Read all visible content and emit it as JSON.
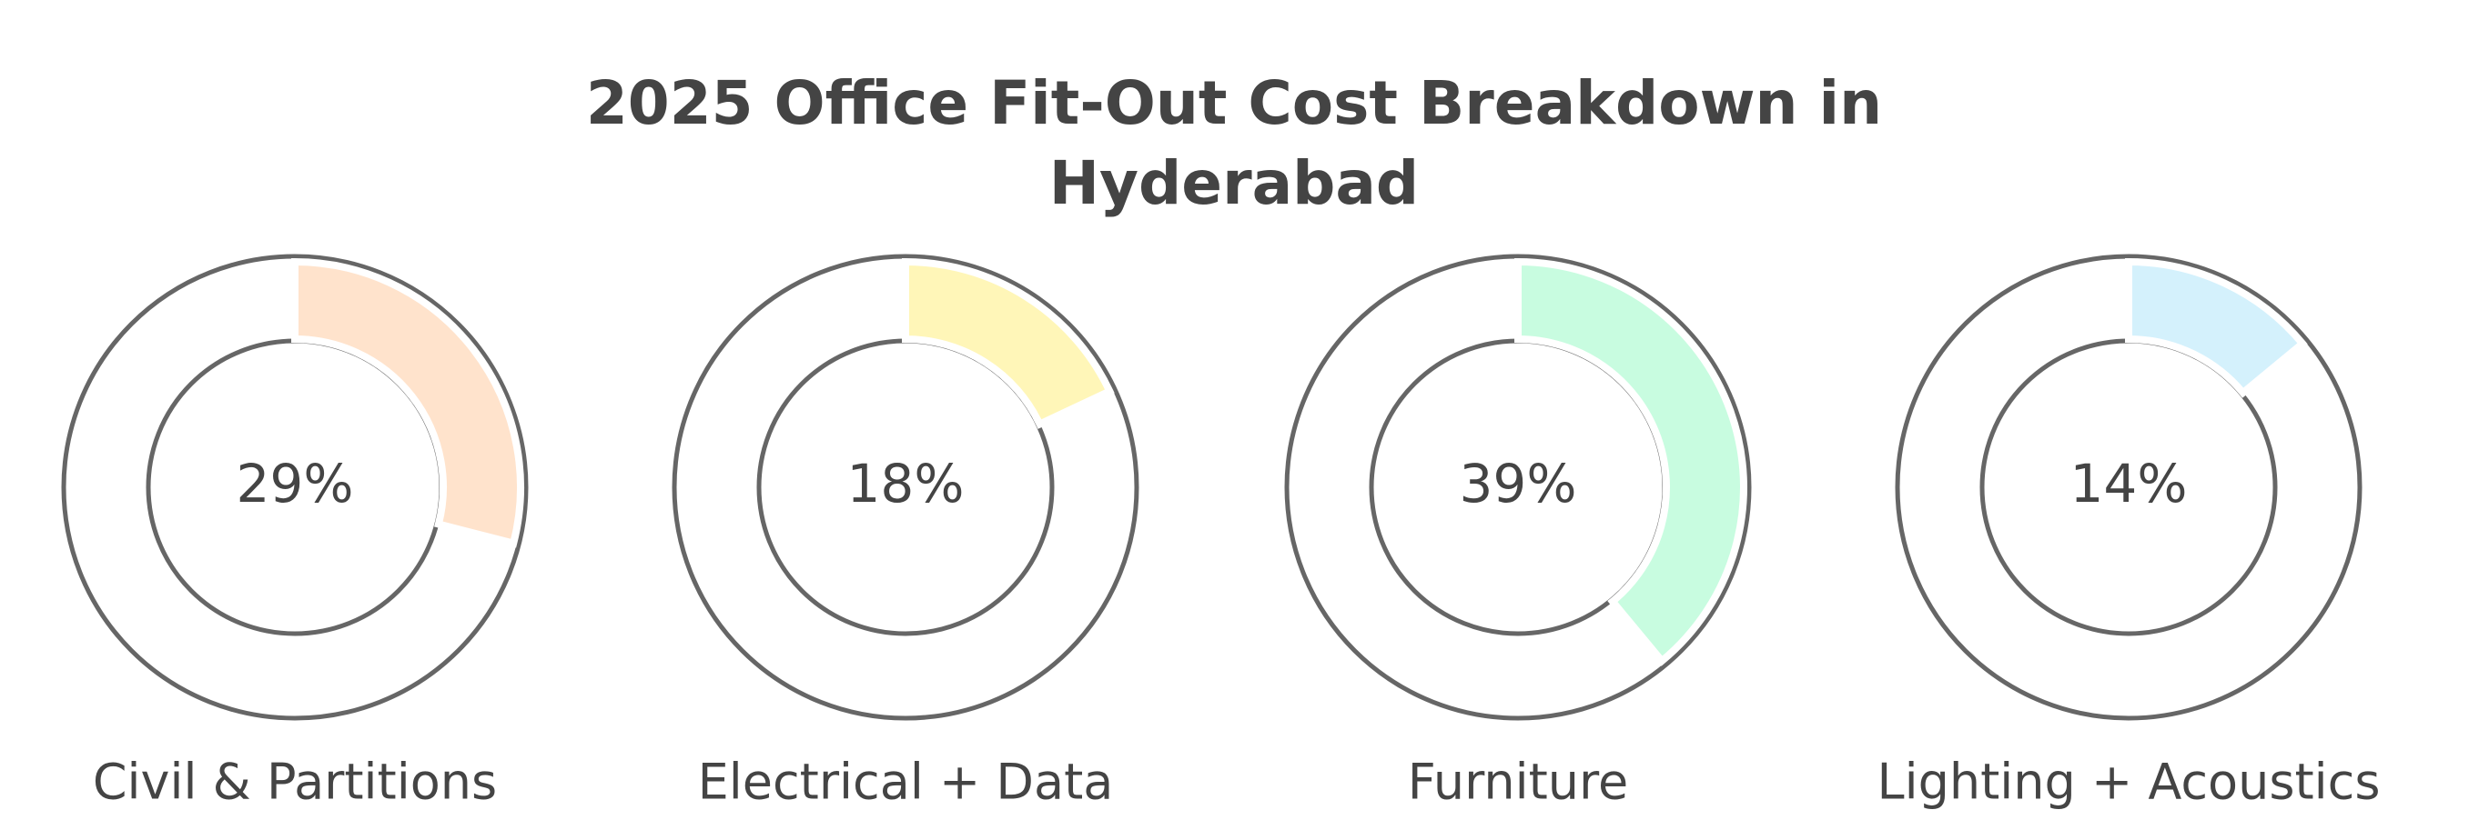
{
  "chart_data": {
    "type": "donut",
    "title": "2025 Office Fit-Out Cost Breakdown in Hyderabad",
    "categories": [
      "Civil & Partitions",
      "Electrical + Data",
      "Furniture",
      "Lighting + Acoustics"
    ],
    "values": [
      29,
      18,
      39,
      14
    ],
    "value_labels": [
      "29%",
      "18%",
      "39%",
      "14%"
    ],
    "colors": [
      "#ffe3cc",
      "#fff6b8",
      "#c8fce0",
      "#d4f1fc"
    ]
  }
}
